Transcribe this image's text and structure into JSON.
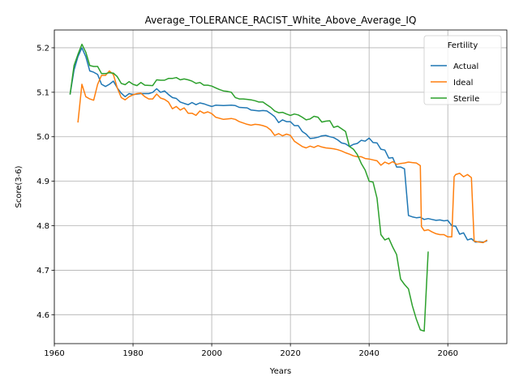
{
  "chart_data": {
    "type": "line",
    "title": "Average_TOLERANCE_RACIST_White_Above_Average_IQ",
    "xlabel": "Years",
    "ylabel": "Score(3-6)",
    "xlim": [
      1960,
      2075
    ],
    "ylim": [
      4.535,
      5.24
    ],
    "xticks": [
      1960,
      1980,
      2000,
      2020,
      2040,
      2060
    ],
    "yticks": [
      4.6,
      4.7,
      4.8,
      4.9,
      5.0,
      5.1,
      5.2
    ],
    "ytick_labels": [
      "4.6",
      "4.7",
      "4.8",
      "4.9",
      "5.0",
      "5.1",
      "5.2"
    ],
    "grid": true,
    "legend": {
      "title": "Fertility",
      "placement": "top-right"
    },
    "series": [
      {
        "name": "Actual",
        "color": "#1f77b4",
        "points": [
          [
            1964,
            5.095
          ],
          [
            1965,
            5.15
          ],
          [
            1966,
            5.18
          ],
          [
            1967,
            5.2
          ],
          [
            1968,
            5.18
          ],
          [
            1969,
            5.148
          ],
          [
            1970,
            5.145
          ],
          [
            1971,
            5.14
          ],
          [
            1972,
            5.118
          ],
          [
            1973,
            5.113
          ],
          [
            1974,
            5.118
          ],
          [
            1975,
            5.125
          ],
          [
            1976,
            5.11
          ],
          [
            1977,
            5.098
          ],
          [
            1978,
            5.09
          ],
          [
            1979,
            5.097
          ],
          [
            1980,
            5.095
          ],
          [
            1982,
            5.097
          ],
          [
            1984,
            5.097
          ],
          [
            1985,
            5.1
          ],
          [
            1986,
            5.108
          ],
          [
            1987,
            5.1
          ],
          [
            1988,
            5.103
          ],
          [
            1989,
            5.095
          ],
          [
            1990,
            5.088
          ],
          [
            1991,
            5.086
          ],
          [
            1992,
            5.078
          ],
          [
            1993,
            5.075
          ],
          [
            1994,
            5.072
          ],
          [
            1995,
            5.077
          ],
          [
            1996,
            5.072
          ],
          [
            1997,
            5.076
          ],
          [
            1998,
            5.074
          ],
          [
            1999,
            5.071
          ],
          [
            2000,
            5.068
          ],
          [
            2001,
            5.071
          ],
          [
            2003,
            5.07
          ],
          [
            2005,
            5.071
          ],
          [
            2006,
            5.07
          ],
          [
            2007,
            5.066
          ],
          [
            2009,
            5.065
          ],
          [
            2010,
            5.06
          ],
          [
            2012,
            5.058
          ],
          [
            2013,
            5.059
          ],
          [
            2014,
            5.058
          ],
          [
            2015,
            5.052
          ],
          [
            2016,
            5.045
          ],
          [
            2017,
            5.032
          ],
          [
            2018,
            5.038
          ],
          [
            2019,
            5.034
          ],
          [
            2020,
            5.034
          ],
          [
            2021,
            5.025
          ],
          [
            2022,
            5.025
          ],
          [
            2023,
            5.012
          ],
          [
            2024,
            5.006
          ],
          [
            2025,
            4.996
          ],
          [
            2026,
            4.997
          ],
          [
            2027,
            4.999
          ],
          [
            2028,
            5.002
          ],
          [
            2029,
            5.003
          ],
          [
            2030,
            5.0
          ],
          [
            2031,
            4.998
          ],
          [
            2032,
            4.993
          ],
          [
            2033,
            4.986
          ],
          [
            2034,
            4.984
          ],
          [
            2035,
            4.978
          ],
          [
            2036,
            4.983
          ],
          [
            2037,
            4.985
          ],
          [
            2038,
            4.992
          ],
          [
            2039,
            4.99
          ],
          [
            2040,
            4.997
          ],
          [
            2041,
            4.987
          ],
          [
            2042,
            4.986
          ],
          [
            2043,
            4.972
          ],
          [
            2044,
            4.97
          ],
          [
            2045,
            4.952
          ],
          [
            2046,
            4.953
          ],
          [
            2047,
            4.932
          ],
          [
            2048,
            4.932
          ],
          [
            2049,
            4.928
          ],
          [
            2050,
            4.823
          ],
          [
            2051,
            4.82
          ],
          [
            2052,
            4.818
          ],
          [
            2053,
            4.819
          ],
          [
            2054,
            4.814
          ],
          [
            2055,
            4.816
          ],
          [
            2056,
            4.814
          ],
          [
            2057,
            4.812
          ],
          [
            2058,
            4.813
          ],
          [
            2059,
            4.811
          ],
          [
            2060,
            4.812
          ],
          [
            2061,
            4.8
          ],
          [
            2062,
            4.799
          ],
          [
            2063,
            4.781
          ],
          [
            2064,
            4.784
          ],
          [
            2065,
            4.768
          ],
          [
            2066,
            4.771
          ],
          [
            2067,
            4.763
          ],
          [
            2068,
            4.764
          ],
          [
            2069,
            4.763
          ],
          [
            2070,
            4.766
          ]
        ]
      },
      {
        "name": "Ideal",
        "color": "#ff7f0e",
        "points": [
          [
            1966,
            5.032
          ],
          [
            1967,
            5.118
          ],
          [
            1968,
            5.09
          ],
          [
            1969,
            5.085
          ],
          [
            1970,
            5.082
          ],
          [
            1971,
            5.118
          ],
          [
            1972,
            5.138
          ],
          [
            1973,
            5.138
          ],
          [
            1974,
            5.148
          ],
          [
            1975,
            5.14
          ],
          [
            1976,
            5.11
          ],
          [
            1977,
            5.088
          ],
          [
            1978,
            5.083
          ],
          [
            1979,
            5.09
          ],
          [
            1980,
            5.094
          ],
          [
            1981,
            5.097
          ],
          [
            1982,
            5.098
          ],
          [
            1983,
            5.09
          ],
          [
            1984,
            5.085
          ],
          [
            1985,
            5.085
          ],
          [
            1986,
            5.096
          ],
          [
            1987,
            5.087
          ],
          [
            1988,
            5.084
          ],
          [
            1989,
            5.078
          ],
          [
            1990,
            5.063
          ],
          [
            1991,
            5.068
          ],
          [
            1992,
            5.06
          ],
          [
            1993,
            5.065
          ],
          [
            1994,
            5.053
          ],
          [
            1995,
            5.053
          ],
          [
            1996,
            5.048
          ],
          [
            1997,
            5.058
          ],
          [
            1998,
            5.053
          ],
          [
            1999,
            5.056
          ],
          [
            2000,
            5.052
          ],
          [
            2001,
            5.044
          ],
          [
            2003,
            5.039
          ],
          [
            2004,
            5.04
          ],
          [
            2005,
            5.041
          ],
          [
            2006,
            5.039
          ],
          [
            2007,
            5.034
          ],
          [
            2009,
            5.028
          ],
          [
            2010,
            5.026
          ],
          [
            2011,
            5.028
          ],
          [
            2012,
            5.027
          ],
          [
            2013,
            5.025
          ],
          [
            2014,
            5.022
          ],
          [
            2015,
            5.015
          ],
          [
            2016,
            5.003
          ],
          [
            2017,
            5.007
          ],
          [
            2018,
            5.002
          ],
          [
            2019,
            5.006
          ],
          [
            2020,
            5.003
          ],
          [
            2021,
            4.99
          ],
          [
            2022,
            4.984
          ],
          [
            2023,
            4.978
          ],
          [
            2024,
            4.975
          ],
          [
            2025,
            4.979
          ],
          [
            2026,
            4.976
          ],
          [
            2027,
            4.98
          ],
          [
            2028,
            4.977
          ],
          [
            2029,
            4.975
          ],
          [
            2030,
            4.974
          ],
          [
            2031,
            4.973
          ],
          [
            2032,
            4.971
          ],
          [
            2033,
            4.968
          ],
          [
            2034,
            4.964
          ],
          [
            2035,
            4.961
          ],
          [
            2036,
            4.957
          ],
          [
            2037,
            4.955
          ],
          [
            2038,
            4.955
          ],
          [
            2039,
            4.951
          ],
          [
            2040,
            4.95
          ],
          [
            2041,
            4.948
          ],
          [
            2042,
            4.946
          ],
          [
            2043,
            4.936
          ],
          [
            2044,
            4.943
          ],
          [
            2045,
            4.939
          ],
          [
            2046,
            4.944
          ],
          [
            2047,
            4.938
          ],
          [
            2048,
            4.94
          ],
          [
            2049,
            4.941
          ],
          [
            2050,
            4.943
          ],
          [
            2051,
            4.942
          ],
          [
            2052,
            4.941
          ],
          [
            2053,
            4.935
          ],
          [
            2053.3,
            4.798
          ],
          [
            2054,
            4.789
          ],
          [
            2055,
            4.791
          ],
          [
            2056,
            4.786
          ],
          [
            2057,
            4.782
          ],
          [
            2058,
            4.78
          ],
          [
            2059,
            4.78
          ],
          [
            2060,
            4.775
          ],
          [
            2061,
            4.775
          ],
          [
            2061.6,
            4.91
          ],
          [
            2062,
            4.915
          ],
          [
            2063,
            4.918
          ],
          [
            2064,
            4.91
          ],
          [
            2065,
            4.915
          ],
          [
            2066,
            4.908
          ],
          [
            2066.7,
            4.765
          ],
          [
            2067,
            4.765
          ],
          [
            2068,
            4.763
          ],
          [
            2069,
            4.762
          ],
          [
            2070,
            4.768
          ]
        ]
      },
      {
        "name": "Sterile",
        "color": "#2ca02c",
        "points": [
          [
            1964,
            5.095
          ],
          [
            1965,
            5.16
          ],
          [
            1966,
            5.185
          ],
          [
            1967,
            5.208
          ],
          [
            1968,
            5.19
          ],
          [
            1969,
            5.16
          ],
          [
            1970,
            5.158
          ],
          [
            1971,
            5.158
          ],
          [
            1972,
            5.142
          ],
          [
            1973,
            5.142
          ],
          [
            1974,
            5.144
          ],
          [
            1975,
            5.143
          ],
          [
            1976,
            5.135
          ],
          [
            1977,
            5.12
          ],
          [
            1978,
            5.117
          ],
          [
            1979,
            5.124
          ],
          [
            1980,
            5.118
          ],
          [
            1981,
            5.115
          ],
          [
            1982,
            5.122
          ],
          [
            1983,
            5.116
          ],
          [
            1985,
            5.115
          ],
          [
            1986,
            5.128
          ],
          [
            1987,
            5.127
          ],
          [
            1988,
            5.127
          ],
          [
            1989,
            5.131
          ],
          [
            1990,
            5.131
          ],
          [
            1991,
            5.133
          ],
          [
            1992,
            5.128
          ],
          [
            1993,
            5.13
          ],
          [
            1994,
            5.128
          ],
          [
            1995,
            5.125
          ],
          [
            1996,
            5.12
          ],
          [
            1997,
            5.122
          ],
          [
            1998,
            5.116
          ],
          [
            1999,
            5.116
          ],
          [
            2000,
            5.114
          ],
          [
            2001,
            5.11
          ],
          [
            2002,
            5.106
          ],
          [
            2003,
            5.103
          ],
          [
            2004,
            5.102
          ],
          [
            2005,
            5.1
          ],
          [
            2006,
            5.088
          ],
          [
            2007,
            5.085
          ],
          [
            2008,
            5.085
          ],
          [
            2009,
            5.084
          ],
          [
            2010,
            5.083
          ],
          [
            2011,
            5.081
          ],
          [
            2012,
            5.078
          ],
          [
            2013,
            5.078
          ],
          [
            2014,
            5.072
          ],
          [
            2015,
            5.066
          ],
          [
            2016,
            5.058
          ],
          [
            2017,
            5.054
          ],
          [
            2018,
            5.055
          ],
          [
            2019,
            5.051
          ],
          [
            2020,
            5.048
          ],
          [
            2021,
            5.051
          ],
          [
            2022,
            5.049
          ],
          [
            2023,
            5.044
          ],
          [
            2024,
            5.038
          ],
          [
            2025,
            5.04
          ],
          [
            2026,
            5.046
          ],
          [
            2027,
            5.044
          ],
          [
            2028,
            5.033
          ],
          [
            2029,
            5.035
          ],
          [
            2030,
            5.036
          ],
          [
            2031,
            5.021
          ],
          [
            2032,
            5.024
          ],
          [
            2033,
            5.018
          ],
          [
            2034,
            5.012
          ],
          [
            2035,
            4.978
          ],
          [
            2036,
            4.972
          ],
          [
            2037,
            4.96
          ],
          [
            2038,
            4.94
          ],
          [
            2039,
            4.925
          ],
          [
            2040,
            4.9
          ],
          [
            2041,
            4.898
          ],
          [
            2042,
            4.862
          ],
          [
            2043,
            4.78
          ],
          [
            2044,
            4.768
          ],
          [
            2045,
            4.772
          ],
          [
            2046,
            4.752
          ],
          [
            2047,
            4.735
          ],
          [
            2048,
            4.68
          ],
          [
            2049,
            4.668
          ],
          [
            2050,
            4.658
          ],
          [
            2051,
            4.62
          ],
          [
            2052,
            4.59
          ],
          [
            2053,
            4.566
          ],
          [
            2054,
            4.563
          ],
          [
            2055,
            4.742
          ]
        ]
      }
    ]
  }
}
